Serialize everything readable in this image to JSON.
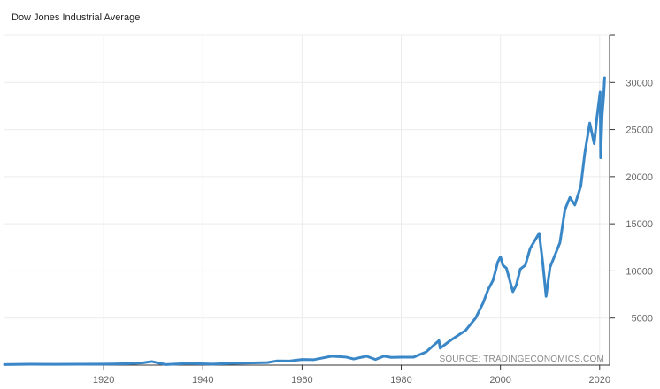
{
  "chart_data": {
    "type": "line",
    "title": "Dow Jones Industrial Average",
    "source": "SOURCE: TRADINGECONOMICS.COM",
    "xlim": [
      1900,
      2022
    ],
    "ylim": [
      0,
      35000
    ],
    "x_ticks": [
      1920,
      1940,
      1960,
      1980,
      2000,
      2020
    ],
    "y_ticks": [
      5000,
      10000,
      15000,
      20000,
      25000,
      30000
    ],
    "y_axis_position": "right",
    "grid": true,
    "color": "#3a87c8",
    "series": [
      {
        "x": [
          1900,
          1905,
          1910,
          1915,
          1920,
          1925,
          1928,
          1929.7,
          1932.5,
          1937,
          1942,
          1946,
          1950,
          1953,
          1955,
          1957.5,
          1960,
          1962.4,
          1966,
          1968.9,
          1970.4,
          1973,
          1974.8,
          1976.5,
          1978,
          1980,
          1982.5,
          1985,
          1987.6,
          1987.85,
          1990,
          1993,
          1995,
          1996.5,
          1997.5,
          1998.5,
          1999.5,
          2000,
          2000.5,
          2001.2,
          2002.5,
          2003.2,
          2004,
          2005,
          2006,
          2007.8,
          2008.5,
          2009.2,
          2010,
          2011,
          2012,
          2013,
          2014,
          2015,
          2016.2,
          2017,
          2018,
          2018.9,
          2019.5,
          2020.1,
          2020.2,
          2020.5,
          2020.8,
          2021
        ],
        "y": [
          60,
          90,
          85,
          90,
          100,
          150,
          250,
          380,
          60,
          180,
          110,
          190,
          230,
          270,
          450,
          430,
          600,
          580,
          950,
          850,
          650,
          950,
          600,
          950,
          820,
          850,
          850,
          1400,
          2600,
          1800,
          2650,
          3700,
          5000,
          6600,
          8000,
          9000,
          11000,
          11500,
          10600,
          10300,
          7800,
          8500,
          10200,
          10600,
          12400,
          14000,
          11000,
          7300,
          10400,
          11700,
          13000,
          16500,
          17800,
          17000,
          19000,
          22500,
          25700,
          23500,
          26500,
          29000,
          22000,
          26500,
          28500,
          30500
        ]
      }
    ]
  }
}
